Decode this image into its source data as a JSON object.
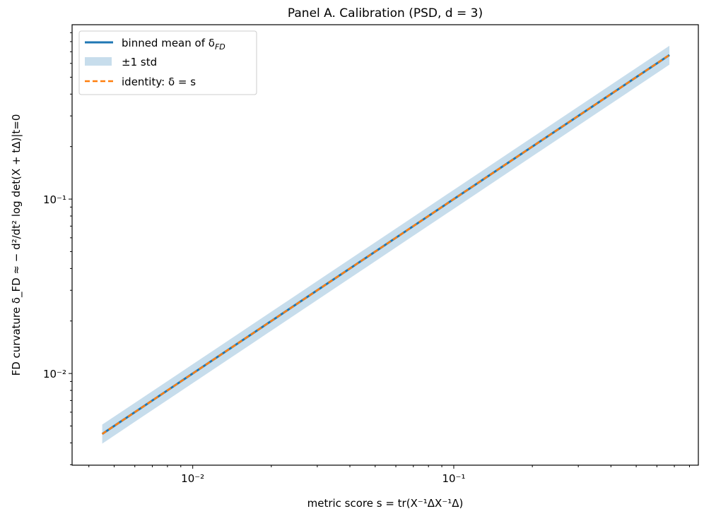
{
  "chart_data": {
    "type": "line",
    "title": "Panel A. Calibration (PSD, d = 3)",
    "xlabel": "metric score s = tr(X⁻¹ΔX⁻¹Δ)",
    "ylabel": "FD curvature δ_FD ≈ − d²/dt² log det(X + tΔ)|t=0",
    "xscale": "log",
    "yscale": "log",
    "xlim": [
      0.00345,
      0.865
    ],
    "ylim": [
      0.00298,
      1.0
    ],
    "grid": false,
    "legend_position": "top-left",
    "x_ticks": [
      {
        "value": 0.01,
        "label": "10⁻²"
      },
      {
        "value": 0.1,
        "label": "10⁻¹"
      }
    ],
    "y_ticks": [
      {
        "value": 0.01,
        "label": "10⁻²"
      },
      {
        "value": 0.1,
        "label": "10⁻¹"
      }
    ],
    "x": [
      0.0045,
      0.00628,
      0.00877,
      0.01224,
      0.01709,
      0.02386,
      0.0333,
      0.0465,
      0.0649,
      0.0906,
      0.1265,
      0.1766,
      0.2465,
      0.3441,
      0.4803,
      0.67
    ],
    "series": [
      {
        "name": "binned mean of δ_FD",
        "legend": "binned mean of δFD",
        "color": "#1f77b4",
        "style": "solid",
        "values": [
          0.0045,
          0.00628,
          0.00877,
          0.01224,
          0.01709,
          0.02386,
          0.0333,
          0.0465,
          0.0649,
          0.0906,
          0.1265,
          0.1766,
          0.2465,
          0.3441,
          0.4803,
          0.67
        ]
      },
      {
        "name": "±1 std",
        "legend": "±1 std",
        "color": "#1f77b4",
        "style": "band",
        "lower": [
          0.00396,
          0.00553,
          0.00772,
          0.01077,
          0.01504,
          0.021,
          0.0293,
          0.0409,
          0.0571,
          0.0797,
          0.1113,
          0.1554,
          0.2169,
          0.3028,
          0.4227,
          0.5896
        ],
        "upper": [
          0.00509,
          0.0071,
          0.00991,
          0.01383,
          0.01931,
          0.02696,
          0.03763,
          0.05255,
          0.07334,
          0.1024,
          0.1429,
          0.1996,
          0.2785,
          0.3888,
          0.5427,
          0.7571
        ]
      },
      {
        "name": "identity: δ = s",
        "legend": "identity: δ = s",
        "color": "#ff7f0e",
        "style": "dashed",
        "values": [
          0.0045,
          0.00628,
          0.00877,
          0.01224,
          0.01709,
          0.02386,
          0.0333,
          0.0465,
          0.0649,
          0.0906,
          0.1265,
          0.1766,
          0.2465,
          0.3441,
          0.4803,
          0.67
        ]
      }
    ]
  }
}
